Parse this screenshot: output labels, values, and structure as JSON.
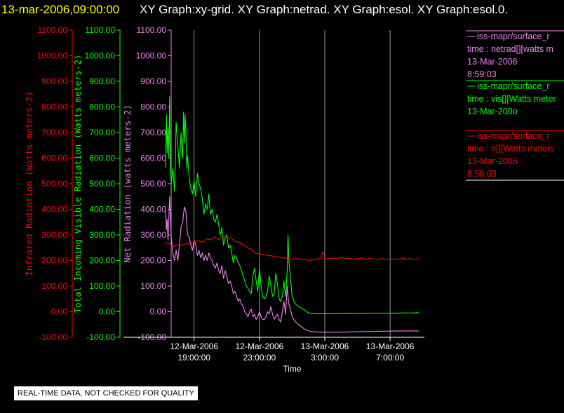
{
  "header": {
    "datetime": "13-mar-2006,09:00:00",
    "graphs": "XY Graph:xy-grid.  XY Graph:netrad.  XY Graph:esol.  XY Graph:esol.0."
  },
  "colors": {
    "red": "#ff0000",
    "green": "#00ff00",
    "violet": "#ee82ee",
    "white": "#ffffff",
    "yellow": "#ffff00"
  },
  "legend": [
    {
      "color": "#ee82ee",
      "lines": [
        "iss-mapr/surface_r",
        "time : netrad[][watts m",
        "13-Mar-2006",
        "8:59:03"
      ]
    },
    {
      "color": "#00ff00",
      "lines": [
        "iss-mapr/surface_r",
        "time : vis[][Watts meter",
        "13-Mar-200o"
      ]
    },
    {
      "color": "#ff0000",
      "lines": [
        "iss-mapr/surface_r",
        "time : ir[][Watts meters",
        "13-Mar-2006",
        "8:59:03"
      ]
    }
  ],
  "disclaimer": "REAL-TIME DATA, NOT CHECKED FOR QUALITY",
  "chart_data": {
    "type": "line",
    "title": "",
    "xlabel": "Time",
    "x_ticks": [
      {
        "t": 19,
        "label": [
          "12-Mar-2006",
          "19:00:00"
        ]
      },
      {
        "t": 23,
        "label": [
          "12-Mar-2006",
          "23:00:00"
        ]
      },
      {
        "t": 27,
        "label": [
          "13-Mar-2006",
          "3:00:00"
        ]
      },
      {
        "t": 31,
        "label": [
          "13-Mar-2006",
          "7:00:00"
        ]
      }
    ],
    "x_range_hours_since_12mar_0000": [
      17.25,
      33.1
    ],
    "grid": "vertical lines at x ticks",
    "axes": [
      {
        "name": "Infrared Radiation (Watts meters-2)",
        "color": "#ff0000",
        "ylim": [
          -100,
          1100
        ],
        "ticks": [
          "1100.00",
          "1000.00",
          "900.00",
          "800.00",
          "700.00",
          "600.00",
          "500.00",
          "400.00",
          "300.00",
          "200.00",
          "100.00",
          "0.00",
          "-100.00"
        ]
      },
      {
        "name": "Total Incoming Visible Radiation (Watts meters-2)",
        "color": "#00ff00",
        "ylim": [
          -100,
          1100
        ],
        "ticks": [
          "1100.00",
          "1000.00",
          "900.00",
          "800.00",
          "700.00",
          "600.00",
          "500.00",
          "400.00",
          "300.00",
          "200.00",
          "100.00",
          "0.00",
          "-100.00"
        ]
      },
      {
        "name": "Net Radiation (watts meters-2)",
        "color": "#ee82ee",
        "ylim": [
          -100,
          1100
        ],
        "ticks": [
          "1100.00",
          "1000.00",
          "900.00",
          "800.00",
          "700.00",
          "600.00",
          "500.00",
          "400.00",
          "300.00",
          "200.00",
          "100.00",
          "0.00",
          "-100.00"
        ]
      }
    ],
    "series": [
      {
        "name": "vis (Total Incoming Visible Radiation)",
        "color": "#00ff00",
        "points": [
          [
            17.25,
            560
          ],
          [
            17.3,
            770
          ],
          [
            17.35,
            620
          ],
          [
            17.4,
            720
          ],
          [
            17.45,
            600
          ],
          [
            17.5,
            840
          ],
          [
            17.55,
            560
          ],
          [
            17.6,
            500
          ],
          [
            17.7,
            560
          ],
          [
            17.8,
            470
          ],
          [
            17.85,
            600
          ],
          [
            17.9,
            740
          ],
          [
            18.0,
            650
          ],
          [
            18.1,
            560
          ],
          [
            18.2,
            700
          ],
          [
            18.25,
            630
          ],
          [
            18.3,
            600
          ],
          [
            18.35,
            780
          ],
          [
            18.4,
            660
          ],
          [
            18.45,
            770
          ],
          [
            18.5,
            700
          ],
          [
            18.55,
            560
          ],
          [
            18.6,
            610
          ],
          [
            18.7,
            520
          ],
          [
            18.8,
            480
          ],
          [
            18.9,
            460
          ],
          [
            19.0,
            510
          ],
          [
            19.1,
            450
          ],
          [
            19.2,
            540
          ],
          [
            19.3,
            500
          ],
          [
            19.4,
            480
          ],
          [
            19.5,
            440
          ],
          [
            19.6,
            380
          ],
          [
            19.7,
            420
          ],
          [
            19.8,
            400
          ],
          [
            19.9,
            460
          ],
          [
            20.0,
            380
          ],
          [
            20.1,
            400
          ],
          [
            20.2,
            360
          ],
          [
            20.3,
            350
          ],
          [
            20.4,
            380
          ],
          [
            20.5,
            340
          ],
          [
            20.6,
            300
          ],
          [
            20.7,
            330
          ],
          [
            20.8,
            260
          ],
          [
            20.9,
            290
          ],
          [
            21.0,
            300
          ],
          [
            21.1,
            250
          ],
          [
            21.2,
            260
          ],
          [
            21.3,
            230
          ],
          [
            21.4,
            190
          ],
          [
            21.5,
            220
          ],
          [
            21.6,
            210
          ],
          [
            21.7,
            190
          ],
          [
            21.8,
            180
          ],
          [
            21.9,
            160
          ],
          [
            22.0,
            140
          ],
          [
            22.1,
            120
          ],
          [
            22.2,
            100
          ],
          [
            22.3,
            90
          ],
          [
            22.4,
            80
          ],
          [
            22.5,
            70
          ],
          [
            22.6,
            140
          ],
          [
            22.7,
            170
          ],
          [
            22.8,
            120
          ],
          [
            22.9,
            80
          ],
          [
            23.0,
            170
          ],
          [
            23.1,
            100
          ],
          [
            23.2,
            60
          ],
          [
            23.3,
            50
          ],
          [
            23.4,
            60
          ],
          [
            23.5,
            80
          ],
          [
            23.6,
            140
          ],
          [
            23.7,
            100
          ],
          [
            23.8,
            60
          ],
          [
            23.9,
            70
          ],
          [
            24.0,
            150
          ],
          [
            24.1,
            110
          ],
          [
            24.2,
            50
          ],
          [
            24.3,
            40
          ],
          [
            24.4,
            60
          ],
          [
            24.5,
            120
          ],
          [
            24.6,
            60
          ],
          [
            24.7,
            160
          ],
          [
            24.75,
            300
          ],
          [
            24.8,
            200
          ],
          [
            24.9,
            130
          ],
          [
            25.0,
            60
          ],
          [
            25.2,
            30
          ],
          [
            25.4,
            20
          ],
          [
            25.7,
            10
          ],
          [
            26.0,
            -5
          ],
          [
            26.5,
            -8
          ],
          [
            27.0,
            -8
          ],
          [
            28.0,
            -7
          ],
          [
            29.0,
            -7
          ],
          [
            30.0,
            -6
          ],
          [
            31.0,
            -6
          ],
          [
            32.0,
            -5
          ],
          [
            32.5,
            -5
          ],
          [
            32.6,
            -3
          ],
          [
            32.75,
            -5
          ]
        ]
      },
      {
        "name": "netrad (Net Radiation)",
        "color": "#ee82ee",
        "points": [
          [
            17.25,
            410
          ],
          [
            17.3,
            320
          ],
          [
            17.35,
            360
          ],
          [
            17.4,
            280
          ],
          [
            17.5,
            450
          ],
          [
            17.6,
            290
          ],
          [
            17.7,
            230
          ],
          [
            17.8,
            200
          ],
          [
            17.9,
            240
          ],
          [
            18.0,
            200
          ],
          [
            18.1,
            260
          ],
          [
            18.2,
            330
          ],
          [
            18.3,
            350
          ],
          [
            18.4,
            410
          ],
          [
            18.5,
            390
          ],
          [
            18.6,
            300
          ],
          [
            18.7,
            290
          ],
          [
            18.8,
            260
          ],
          [
            18.9,
            240
          ],
          [
            19.0,
            280
          ],
          [
            19.1,
            260
          ],
          [
            19.2,
            220
          ],
          [
            19.3,
            240
          ],
          [
            19.4,
            210
          ],
          [
            19.5,
            230
          ],
          [
            19.6,
            200
          ],
          [
            19.7,
            220
          ],
          [
            19.8,
            200
          ],
          [
            19.9,
            230
          ],
          [
            20.0,
            210
          ],
          [
            20.1,
            200
          ],
          [
            20.2,
            180
          ],
          [
            20.3,
            170
          ],
          [
            20.4,
            190
          ],
          [
            20.5,
            160
          ],
          [
            20.6,
            150
          ],
          [
            20.7,
            180
          ],
          [
            20.8,
            130
          ],
          [
            20.9,
            160
          ],
          [
            21.0,
            140
          ],
          [
            21.1,
            110
          ],
          [
            21.2,
            120
          ],
          [
            21.3,
            100
          ],
          [
            21.4,
            70
          ],
          [
            21.5,
            80
          ],
          [
            21.6,
            60
          ],
          [
            21.7,
            40
          ],
          [
            21.8,
            50
          ],
          [
            21.9,
            30
          ],
          [
            22.0,
            20
          ],
          [
            22.1,
            0
          ],
          [
            22.2,
            -10
          ],
          [
            22.3,
            -20
          ],
          [
            22.4,
            0
          ],
          [
            22.5,
            10
          ],
          [
            22.6,
            -20
          ],
          [
            22.7,
            -10
          ],
          [
            22.8,
            -30
          ],
          [
            22.9,
            -20
          ],
          [
            23.0,
            0
          ],
          [
            23.1,
            -20
          ],
          [
            23.2,
            -30
          ],
          [
            23.3,
            -30
          ],
          [
            23.4,
            -20
          ],
          [
            23.5,
            0
          ],
          [
            23.6,
            -10
          ],
          [
            23.7,
            20
          ],
          [
            23.8,
            -10
          ],
          [
            23.9,
            -30
          ],
          [
            24.0,
            -20
          ],
          [
            24.1,
            -10
          ],
          [
            24.2,
            -30
          ],
          [
            24.3,
            -40
          ],
          [
            24.4,
            0
          ],
          [
            24.5,
            40
          ],
          [
            24.6,
            -10
          ],
          [
            24.7,
            100
          ],
          [
            24.75,
            60
          ],
          [
            24.8,
            30
          ],
          [
            24.9,
            10
          ],
          [
            25.0,
            -20
          ],
          [
            25.1,
            -30
          ],
          [
            25.2,
            -40
          ],
          [
            25.4,
            -50
          ],
          [
            25.6,
            -60
          ],
          [
            25.8,
            -70
          ],
          [
            26.0,
            -75
          ],
          [
            26.3,
            -78
          ],
          [
            26.6,
            -80
          ],
          [
            27.0,
            -80
          ],
          [
            28.0,
            -80
          ],
          [
            29.0,
            -78
          ],
          [
            30.0,
            -77
          ],
          [
            31.0,
            -76
          ],
          [
            32.0,
            -75
          ],
          [
            32.75,
            -75
          ]
        ]
      },
      {
        "name": "ir (Infrared Radiation)",
        "color": "#ff0000",
        "points": [
          [
            17.25,
            270
          ],
          [
            17.5,
            265
          ],
          [
            17.75,
            255
          ],
          [
            18.0,
            262
          ],
          [
            18.25,
            258
          ],
          [
            18.5,
            268
          ],
          [
            18.75,
            262
          ],
          [
            19.0,
            272
          ],
          [
            19.25,
            278
          ],
          [
            19.5,
            272
          ],
          [
            19.75,
            285
          ],
          [
            20.0,
            280
          ],
          [
            20.25,
            292
          ],
          [
            20.5,
            282
          ],
          [
            20.75,
            300
          ],
          [
            21.0,
            290
          ],
          [
            21.25,
            288
          ],
          [
            21.5,
            275
          ],
          [
            21.75,
            270
          ],
          [
            22.0,
            262
          ],
          [
            22.25,
            250
          ],
          [
            22.5,
            245
          ],
          [
            22.75,
            228
          ],
          [
            23.0,
            226
          ],
          [
            23.25,
            222
          ],
          [
            23.5,
            220
          ],
          [
            23.75,
            218
          ],
          [
            24.0,
            215
          ],
          [
            24.25,
            212
          ],
          [
            24.5,
            210
          ],
          [
            24.75,
            208
          ],
          [
            25.0,
            205
          ],
          [
            25.25,
            208
          ],
          [
            25.5,
            203
          ],
          [
            25.75,
            205
          ],
          [
            26.0,
            200
          ],
          [
            26.25,
            203
          ],
          [
            26.5,
            205
          ],
          [
            26.75,
            210
          ],
          [
            26.9,
            235
          ],
          [
            27.0,
            205
          ],
          [
            27.25,
            208
          ],
          [
            27.5,
            210
          ],
          [
            27.75,
            208
          ],
          [
            28.0,
            212
          ],
          [
            28.25,
            208
          ],
          [
            28.5,
            210
          ],
          [
            28.75,
            205
          ],
          [
            29.0,
            208
          ],
          [
            29.25,
            210
          ],
          [
            29.5,
            205
          ],
          [
            29.75,
            208
          ],
          [
            30.0,
            206
          ],
          [
            30.25,
            204
          ],
          [
            30.5,
            208
          ],
          [
            30.75,
            203
          ],
          [
            31.0,
            205
          ],
          [
            31.25,
            206
          ],
          [
            31.5,
            204
          ],
          [
            31.75,
            208
          ],
          [
            32.0,
            205
          ],
          [
            32.25,
            207
          ],
          [
            32.5,
            204
          ],
          [
            32.75,
            208
          ]
        ]
      }
    ]
  }
}
